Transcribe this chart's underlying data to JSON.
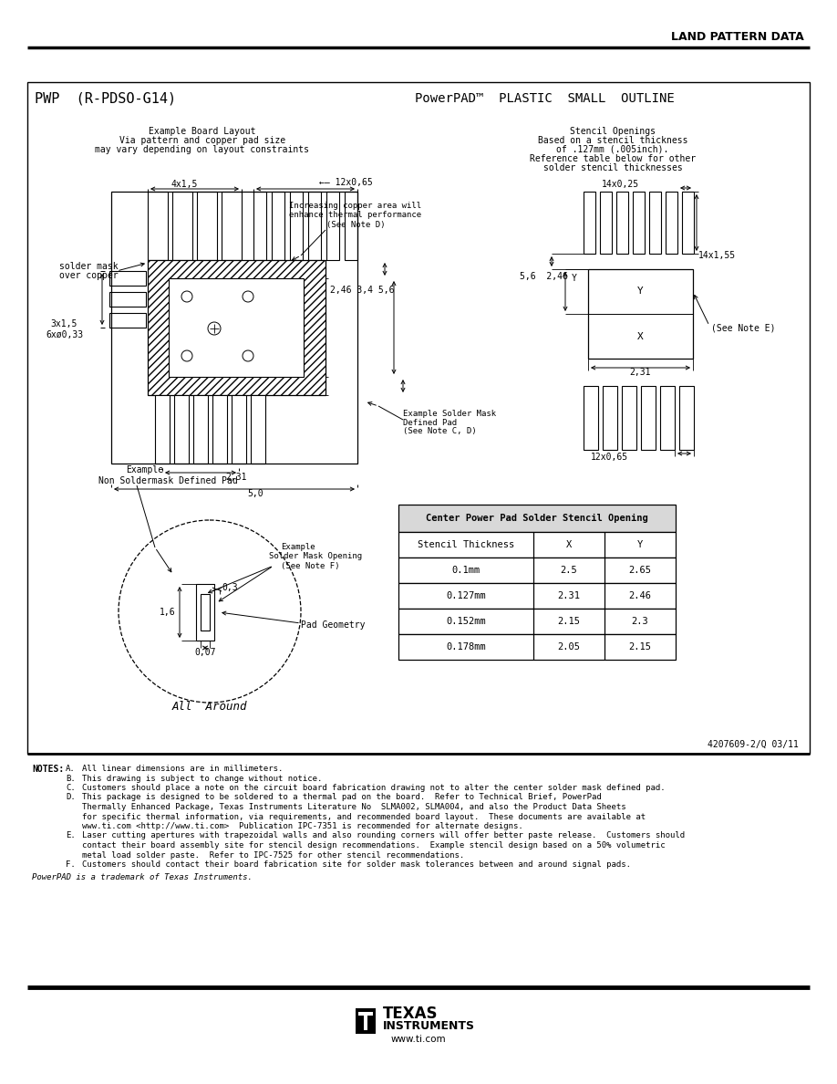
{
  "title": "LAND PATTERN DATA",
  "pkg_name": "PWP  (R-PDSO-G14)",
  "pkg_type": "PowerPAD™  PLASTIC  SMALL  OUTLINE",
  "table_header": "Center Power Pad Solder Stencil Opening",
  "table_cols": [
    "Stencil Thickness",
    "X",
    "Y"
  ],
  "table_rows": [
    [
      "0.1mm",
      "2.5",
      "2.65"
    ],
    [
      "0.127mm",
      "2.31",
      "2.46"
    ],
    [
      "0.152mm",
      "2.15",
      "2.3"
    ],
    [
      "0.178mm",
      "2.05",
      "2.15"
    ]
  ],
  "doc_num": "4207609-2/Q 03/11",
  "trademark_note": "PowerPAD is a trademark of Texas Instruments."
}
